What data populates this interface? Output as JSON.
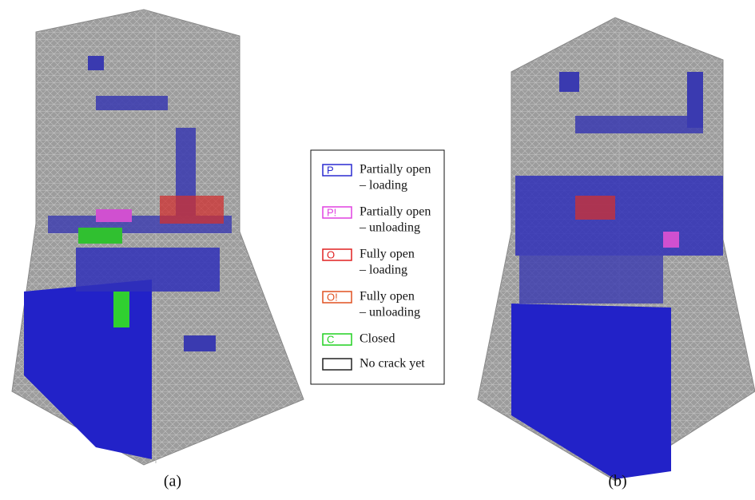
{
  "legend": {
    "items": [
      {
        "symbol": "P",
        "lines": [
          "Partially open",
          "– loading"
        ],
        "color": "#2a2ad0"
      },
      {
        "symbol": "P!",
        "lines": [
          "Partially open",
          "– unloading"
        ],
        "color": "#e040e0"
      },
      {
        "symbol": "O",
        "lines": [
          "Fully open",
          "– loading"
        ],
        "color": "#e02020"
      },
      {
        "symbol": "O!",
        "lines": [
          "Fully open",
          "– unloading"
        ],
        "color": "#e05020"
      },
      {
        "symbol": "C",
        "lines": [
          "Closed"
        ],
        "color": "#20d020"
      },
      {
        "symbol": "",
        "lines": [
          "No crack yet"
        ],
        "color": "#222222"
      }
    ]
  },
  "captions": [
    "(a)",
    "(b)"
  ]
}
